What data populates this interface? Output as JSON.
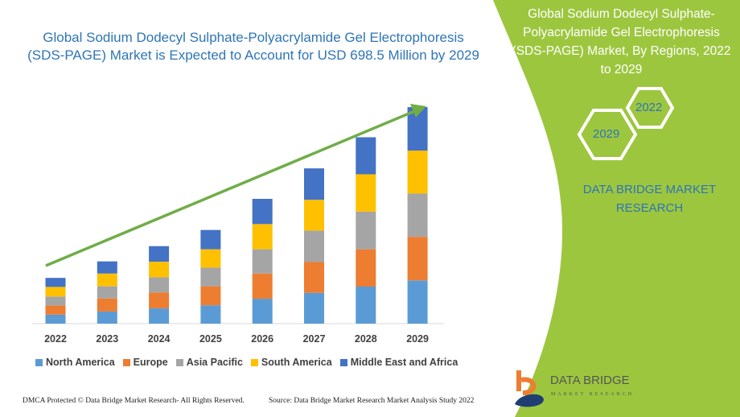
{
  "title": "Global Sodium Dodecyl Sulphate-Polyacrylamide Gel Electrophoresis (SDS-PAGE) Market is Expected to Account for USD 698.5 Million by 2029",
  "side_panel": {
    "title": "Global Sodium Dodecyl Sulphate-Polyacrylamide Gel Electrophoresis (SDS-PAGE) Market, By Regions, 2022 to 2029",
    "hex_top": "2022",
    "hex_bottom": "2029",
    "brand": "DATA BRIDGE MARKET RESEARCH",
    "logo_text": "DATA BRIDGE",
    "logo_sub": "MARKET RESEARCH",
    "color": "#9dc63f"
  },
  "footer": {
    "left": "DMCA Protected © Data Bridge Market Research- All Rights Reserved.",
    "right": "Source: Data Bridge Market Research Market Analysis Study 2022"
  },
  "chart_data": {
    "type": "bar",
    "stacked": true,
    "categories": [
      "2022",
      "2023",
      "2024",
      "2025",
      "2026",
      "2027",
      "2028",
      "2029"
    ],
    "series": [
      {
        "name": "North America",
        "color": "#5b9bd5",
        "values": [
          29,
          39,
          49,
          59,
          80,
          99,
          119,
          139
        ]
      },
      {
        "name": "Europe",
        "color": "#ed7d31",
        "values": [
          29,
          42,
          51,
          61,
          81,
          99,
          120,
          140
        ]
      },
      {
        "name": "Asia Pacific",
        "color": "#a5a5a5",
        "values": [
          29,
          39,
          49,
          60,
          78,
          101,
          121,
          139
        ]
      },
      {
        "name": "South America",
        "color": "#ffc000",
        "values": [
          31,
          41,
          50,
          59,
          81,
          99,
          120,
          138
        ]
      },
      {
        "name": "Middle East and Africa",
        "color": "#4472c4",
        "values": [
          29,
          39,
          50,
          62,
          81,
          101,
          119,
          140
        ]
      }
    ],
    "trend_arrow_color": "#70ad47",
    "legend": "bottom",
    "grid": false,
    "y_axis_shown": false
  }
}
